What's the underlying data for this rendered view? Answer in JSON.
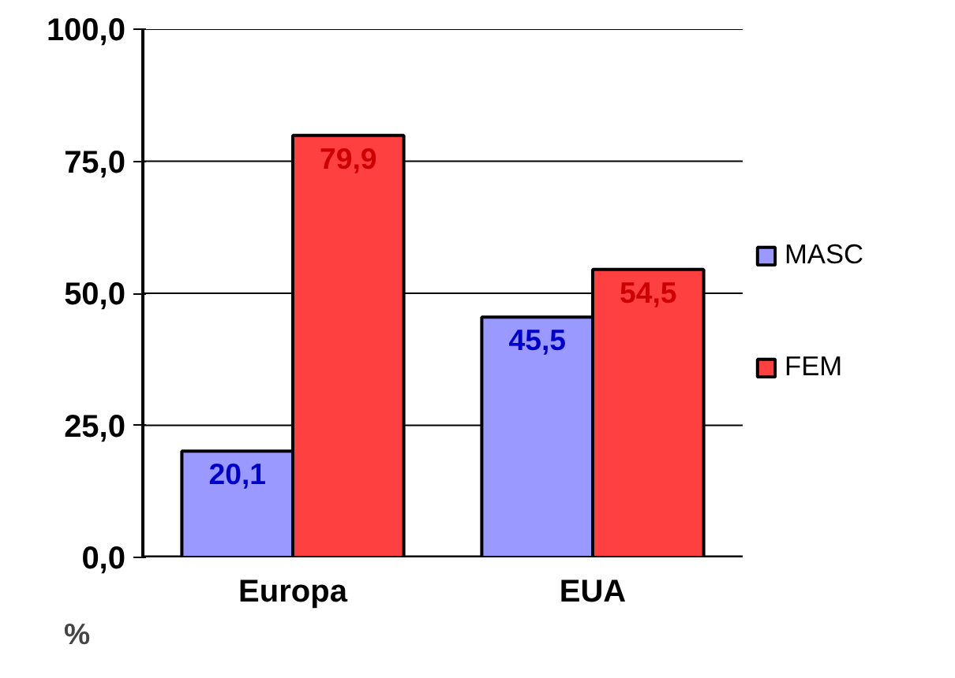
{
  "chart_data": {
    "type": "bar",
    "ylabel": "%",
    "categories": [
      "Europa",
      "EUA"
    ],
    "series": [
      {
        "name": "MASC",
        "color": "#9999ff",
        "values": [
          20.1,
          45.5
        ],
        "value_labels": [
          "20,1",
          "45,5"
        ]
      },
      {
        "name": "FEM",
        "color": "#ff4040",
        "values": [
          79.9,
          54.5
        ],
        "value_labels": [
          "79,9",
          "54,5"
        ]
      }
    ],
    "ylim": [
      0,
      100
    ],
    "yticks": [
      {
        "value": 0,
        "label": "0,0"
      },
      {
        "value": 25,
        "label": "25,0"
      },
      {
        "value": 50,
        "label": "50,0"
      },
      {
        "value": 75,
        "label": "75,0"
      },
      {
        "value": 100,
        "label": "100,0"
      }
    ],
    "grid": "y",
    "legend": "right"
  }
}
